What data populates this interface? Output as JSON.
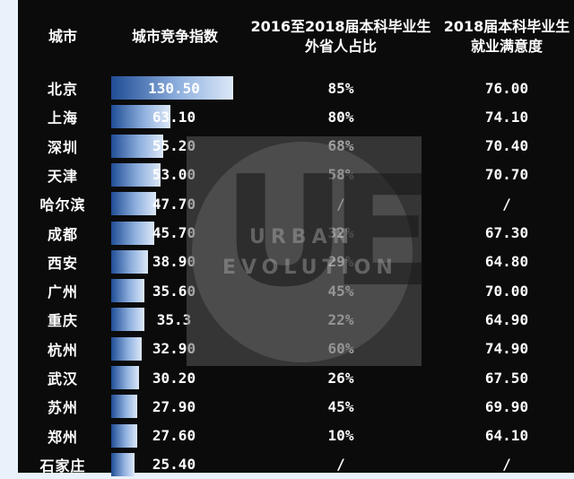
{
  "colors": {
    "background": "#0b0b0b",
    "page": "#e9f2fa",
    "bar_dark": "#1f4d95",
    "bar_light": "#dce8f8",
    "text": "#ffffff"
  },
  "watermark": {
    "letters": "UE",
    "line1": "URBAN",
    "line2": "EVOLUTION"
  },
  "chart_data": {
    "type": "table",
    "columns": [
      "城市",
      "城市竞争指数",
      "2016至2018届本科毕业生\n外省人占比",
      "2018届本科毕业生\n就业满意度"
    ],
    "index_max": 130.5,
    "rows": [
      {
        "city": "北京",
        "index": 130.5,
        "index_text": "130.50",
        "ratio": "85%",
        "sat": "76.00"
      },
      {
        "city": "上海",
        "index": 63.1,
        "index_text": "63.10",
        "ratio": "80%",
        "sat": "74.10"
      },
      {
        "city": "深圳",
        "index": 55.2,
        "index_text": "55.20",
        "ratio": "68%",
        "sat": "70.40"
      },
      {
        "city": "天津",
        "index": 53.0,
        "index_text": "53.00",
        "ratio": "58%",
        "sat": "70.70"
      },
      {
        "city": "哈尔滨",
        "index": 47.7,
        "index_text": "47.70",
        "ratio": "/",
        "sat": "/"
      },
      {
        "city": "成都",
        "index": 45.7,
        "index_text": "45.70",
        "ratio": "32%",
        "sat": "67.30"
      },
      {
        "city": "西安",
        "index": 38.9,
        "index_text": "38.90",
        "ratio": "29%",
        "sat": "64.80"
      },
      {
        "city": "广州",
        "index": 35.6,
        "index_text": "35.60",
        "ratio": "45%",
        "sat": "70.00"
      },
      {
        "city": "重庆",
        "index": 35.3,
        "index_text": "35.3",
        "ratio": "22%",
        "sat": "64.90"
      },
      {
        "city": "杭州",
        "index": 32.9,
        "index_text": "32.90",
        "ratio": "60%",
        "sat": "74.90"
      },
      {
        "city": "武汉",
        "index": 30.2,
        "index_text": "30.20",
        "ratio": "26%",
        "sat": "67.50"
      },
      {
        "city": "苏州",
        "index": 27.9,
        "index_text": "27.90",
        "ratio": "45%",
        "sat": "69.90"
      },
      {
        "city": "郑州",
        "index": 27.6,
        "index_text": "27.60",
        "ratio": "10%",
        "sat": "64.10"
      },
      {
        "city": "石家庄",
        "index": 25.4,
        "index_text": "25.40",
        "ratio": "/",
        "sat": "/"
      }
    ]
  }
}
